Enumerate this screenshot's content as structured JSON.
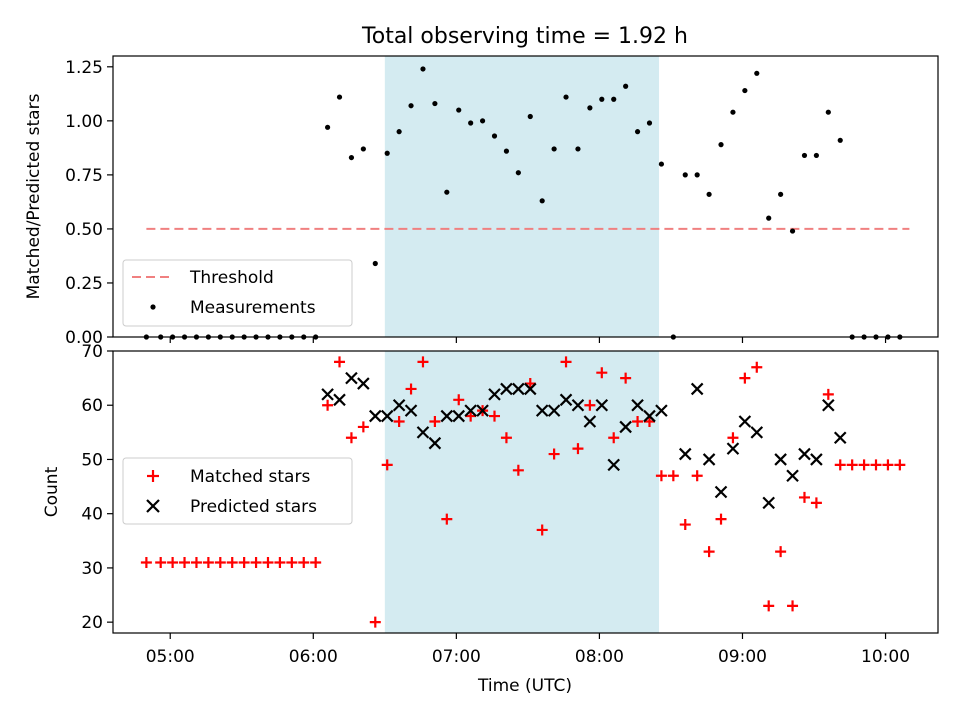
{
  "chart_data": [
    {
      "type": "scatter",
      "title": "Total observing time = 1.92 h",
      "xlabel": "",
      "ylabel": "Matched/Predicted stars",
      "ylim": [
        0,
        1.3
      ],
      "yticks": [
        "0.00",
        "0.25",
        "0.50",
        "0.75",
        "1.00",
        "1.25"
      ],
      "xlim": [
        "04:36",
        "10:22"
      ],
      "shaded_interval": [
        "06:30",
        "08:25"
      ],
      "shade_color": "#d4ebf1",
      "legend_position": "lower left",
      "threshold": {
        "name": "Threshold",
        "y": 0.5,
        "x_range": [
          "04:50",
          "10:10"
        ],
        "color": "#f08080",
        "style": "dashed"
      },
      "series": [
        {
          "name": "Measurements",
          "marker": "dot",
          "color": "#000000",
          "points": [
            [
              "04:50",
              0.0
            ],
            [
              "04:56",
              0.0
            ],
            [
              "05:01",
              0.0
            ],
            [
              "05:06",
              0.0
            ],
            [
              "05:11",
              0.0
            ],
            [
              "05:16",
              0.0
            ],
            [
              "05:21",
              0.0
            ],
            [
              "05:26",
              0.0
            ],
            [
              "05:31",
              0.0
            ],
            [
              "05:36",
              0.0
            ],
            [
              "05:41",
              0.0
            ],
            [
              "05:46",
              0.0
            ],
            [
              "05:51",
              0.0
            ],
            [
              "05:56",
              0.0
            ],
            [
              "06:01",
              0.0
            ],
            [
              "06:06",
              0.97
            ],
            [
              "06:11",
              1.11
            ],
            [
              "06:16",
              0.83
            ],
            [
              "06:21",
              0.87
            ],
            [
              "06:26",
              0.34
            ],
            [
              "06:31",
              0.85
            ],
            [
              "06:36",
              0.95
            ],
            [
              "06:41",
              1.07
            ],
            [
              "06:46",
              1.24
            ],
            [
              "06:51",
              1.08
            ],
            [
              "06:56",
              0.67
            ],
            [
              "07:01",
              1.05
            ],
            [
              "07:06",
              0.99
            ],
            [
              "07:11",
              1.0
            ],
            [
              "07:16",
              0.93
            ],
            [
              "07:21",
              0.86
            ],
            [
              "07:26",
              0.76
            ],
            [
              "07:31",
              1.02
            ],
            [
              "07:36",
              0.63
            ],
            [
              "07:41",
              0.87
            ],
            [
              "07:46",
              1.11
            ],
            [
              "07:51",
              0.87
            ],
            [
              "07:56",
              1.06
            ],
            [
              "08:01",
              1.1
            ],
            [
              "08:06",
              1.1
            ],
            [
              "08:11",
              1.16
            ],
            [
              "08:16",
              0.95
            ],
            [
              "08:21",
              0.99
            ],
            [
              "08:26",
              0.8
            ],
            [
              "08:31",
              0.0
            ],
            [
              "08:36",
              0.75
            ],
            [
              "08:41",
              0.75
            ],
            [
              "08:46",
              0.66
            ],
            [
              "08:51",
              0.89
            ],
            [
              "08:56",
              1.04
            ],
            [
              "09:01",
              1.14
            ],
            [
              "09:06",
              1.22
            ],
            [
              "09:11",
              0.55
            ],
            [
              "09:16",
              0.66
            ],
            [
              "09:21",
              0.49
            ],
            [
              "09:26",
              0.84
            ],
            [
              "09:31",
              0.84
            ],
            [
              "09:36",
              1.04
            ],
            [
              "09:41",
              0.91
            ],
            [
              "09:46",
              0.0
            ],
            [
              "09:51",
              0.0
            ],
            [
              "09:56",
              0.0
            ],
            [
              "10:01",
              0.0
            ],
            [
              "10:06",
              0.0
            ]
          ]
        }
      ]
    },
    {
      "type": "scatter",
      "xlabel": "Time (UTC)",
      "ylabel": "Count",
      "ylim": [
        18,
        70
      ],
      "yticks": [
        "20",
        "30",
        "40",
        "50",
        "60",
        "70"
      ],
      "xlim": [
        "04:36",
        "10:22"
      ],
      "xticks": [
        "05:00",
        "06:00",
        "07:00",
        "08:00",
        "09:00",
        "10:00"
      ],
      "shaded_interval": [
        "06:30",
        "08:25"
      ],
      "shade_color": "#d4ebf1",
      "legend_position": "center left",
      "series": [
        {
          "name": "Matched stars",
          "marker": "plus",
          "color": "#ff0000",
          "points": [
            [
              "04:50",
              31
            ],
            [
              "04:56",
              31
            ],
            [
              "05:01",
              31
            ],
            [
              "05:06",
              31
            ],
            [
              "05:11",
              31
            ],
            [
              "05:16",
              31
            ],
            [
              "05:21",
              31
            ],
            [
              "05:26",
              31
            ],
            [
              "05:31",
              31
            ],
            [
              "05:36",
              31
            ],
            [
              "05:41",
              31
            ],
            [
              "05:46",
              31
            ],
            [
              "05:51",
              31
            ],
            [
              "05:56",
              31
            ],
            [
              "06:01",
              31
            ],
            [
              "06:06",
              60
            ],
            [
              "06:11",
              68
            ],
            [
              "06:16",
              54
            ],
            [
              "06:21",
              56
            ],
            [
              "06:26",
              20
            ],
            [
              "06:31",
              49
            ],
            [
              "06:36",
              57
            ],
            [
              "06:41",
              63
            ],
            [
              "06:46",
              68
            ],
            [
              "06:51",
              57
            ],
            [
              "06:56",
              39
            ],
            [
              "07:01",
              61
            ],
            [
              "07:06",
              58
            ],
            [
              "07:11",
              59
            ],
            [
              "07:16",
              58
            ],
            [
              "07:21",
              54
            ],
            [
              "07:26",
              48
            ],
            [
              "07:31",
              64
            ],
            [
              "07:36",
              37
            ],
            [
              "07:41",
              51
            ],
            [
              "07:46",
              68
            ],
            [
              "07:51",
              52
            ],
            [
              "07:56",
              60
            ],
            [
              "08:01",
              66
            ],
            [
              "08:06",
              54
            ],
            [
              "08:11",
              65
            ],
            [
              "08:16",
              57
            ],
            [
              "08:21",
              57
            ],
            [
              "08:26",
              47
            ],
            [
              "08:31",
              47
            ],
            [
              "08:36",
              38
            ],
            [
              "08:41",
              47
            ],
            [
              "08:46",
              33
            ],
            [
              "08:51",
              39
            ],
            [
              "08:56",
              54
            ],
            [
              "09:01",
              65
            ],
            [
              "09:06",
              67
            ],
            [
              "09:11",
              23
            ],
            [
              "09:16",
              33
            ],
            [
              "09:21",
              23
            ],
            [
              "09:26",
              43
            ],
            [
              "09:31",
              42
            ],
            [
              "09:36",
              62
            ],
            [
              "09:41",
              49
            ],
            [
              "09:46",
              49
            ],
            [
              "09:51",
              49
            ],
            [
              "09:56",
              49
            ],
            [
              "10:01",
              49
            ],
            [
              "10:06",
              49
            ]
          ]
        },
        {
          "name": "Predicted stars",
          "marker": "x",
          "color": "#000000",
          "points": [
            [
              "06:06",
              62
            ],
            [
              "06:11",
              61
            ],
            [
              "06:16",
              65
            ],
            [
              "06:21",
              64
            ],
            [
              "06:26",
              58
            ],
            [
              "06:31",
              58
            ],
            [
              "06:36",
              60
            ],
            [
              "06:41",
              59
            ],
            [
              "06:46",
              55
            ],
            [
              "06:51",
              53
            ],
            [
              "06:56",
              58
            ],
            [
              "07:01",
              58
            ],
            [
              "07:06",
              59
            ],
            [
              "07:11",
              59
            ],
            [
              "07:16",
              62
            ],
            [
              "07:21",
              63
            ],
            [
              "07:26",
              63
            ],
            [
              "07:31",
              63
            ],
            [
              "07:36",
              59
            ],
            [
              "07:41",
              59
            ],
            [
              "07:46",
              61
            ],
            [
              "07:51",
              60
            ],
            [
              "07:56",
              57
            ],
            [
              "08:01",
              60
            ],
            [
              "08:06",
              49
            ],
            [
              "08:11",
              56
            ],
            [
              "08:16",
              60
            ],
            [
              "08:21",
              58
            ],
            [
              "08:26",
              59
            ],
            [
              "08:36",
              51
            ],
            [
              "08:41",
              63
            ],
            [
              "08:46",
              50
            ],
            [
              "08:51",
              44
            ],
            [
              "08:56",
              52
            ],
            [
              "09:01",
              57
            ],
            [
              "09:06",
              55
            ],
            [
              "09:11",
              42
            ],
            [
              "09:16",
              50
            ],
            [
              "09:21",
              47
            ],
            [
              "09:26",
              51
            ],
            [
              "09:31",
              50
            ],
            [
              "09:36",
              60
            ],
            [
              "09:41",
              54
            ]
          ]
        }
      ]
    }
  ]
}
